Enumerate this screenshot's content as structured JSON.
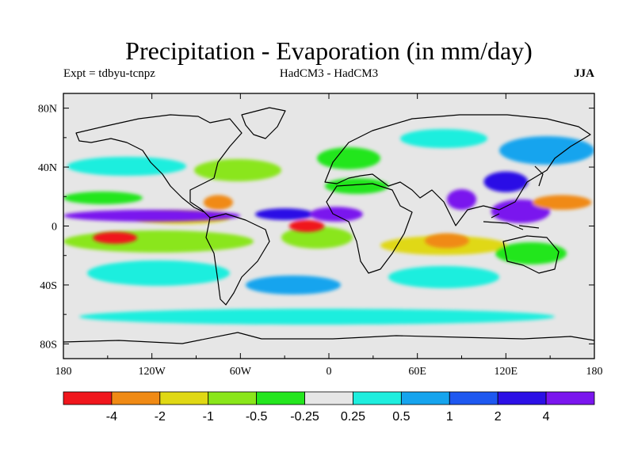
{
  "title": "Precipitation - Evaporation (in mm/day)",
  "experiment": "Expt = tdbyu-tcnpz",
  "models": "HadCM3 - HadCM3",
  "season": "JJA",
  "map": {
    "projection": "cylindrical-equidistant",
    "lon_range": [
      -180,
      180
    ],
    "lat_range": [
      -90,
      90
    ],
    "background_color": "#e6e6e6",
    "coastline_color": "#000000"
  },
  "chart_data": {
    "type": "heatmap",
    "title": "Precipitation - Evaporation (in mm/day)",
    "x_ticks": [
      {
        "value": -180,
        "label": "180"
      },
      {
        "value": -120,
        "label": "120W"
      },
      {
        "value": -60,
        "label": "60W"
      },
      {
        "value": 0,
        "label": "0"
      },
      {
        "value": 60,
        "label": "60E"
      },
      {
        "value": 120,
        "label": "120E"
      },
      {
        "value": 180,
        "label": "180"
      }
    ],
    "y_ticks": [
      {
        "value": 80,
        "label": "80N"
      },
      {
        "value": 40,
        "label": "40N"
      },
      {
        "value": 0,
        "label": "0"
      },
      {
        "value": -40,
        "label": "40S"
      },
      {
        "value": -80,
        "label": "80S"
      }
    ],
    "colorbar": {
      "colors": [
        "#f0161c",
        "#f08a14",
        "#e0d814",
        "#8ae61a",
        "#24e61e",
        "#e6e6e6",
        "#1eeede",
        "#16a4ee",
        "#1e58f0",
        "#2c10e6",
        "#7a16ee"
      ],
      "levels": [
        {
          "index": 1,
          "label": "-4"
        },
        {
          "index": 2,
          "label": "-2"
        },
        {
          "index": 3,
          "label": "-1"
        },
        {
          "index": 4,
          "label": "-0.5"
        },
        {
          "index": 5,
          "label": "-0.25"
        },
        {
          "index": 6,
          "label": "0.25"
        },
        {
          "index": 7,
          "label": "0.5"
        },
        {
          "index": 8,
          "label": "1"
        },
        {
          "index": 9,
          "label": "2"
        },
        {
          "index": 10,
          "label": "4"
        }
      ]
    },
    "regions": [
      {
        "name": "east-pacific-itcz",
        "class": 10,
        "lon": -120,
        "lat": 7,
        "rx": 60,
        "ry": 4
      },
      {
        "name": "atlantic-itcz",
        "class": 9,
        "lon": -30,
        "lat": 8,
        "rx": 20,
        "ry": 4
      },
      {
        "name": "west-africa-monsoon",
        "class": 10,
        "lon": 5,
        "lat": 8,
        "rx": 18,
        "ry": 5
      },
      {
        "name": "bay-of-bengal",
        "class": 10,
        "lon": 90,
        "lat": 18,
        "rx": 10,
        "ry": 7
      },
      {
        "name": "west-pacific-warm-pool",
        "class": 10,
        "lon": 130,
        "lat": 10,
        "rx": 20,
        "ry": 8
      },
      {
        "name": "east-asia-monsoon",
        "class": 9,
        "lon": 120,
        "lat": 30,
        "rx": 15,
        "ry": 7
      },
      {
        "name": "indian-ocean-dry",
        "class": 1,
        "lon": 80,
        "lat": -10,
        "rx": 15,
        "ry": 5
      },
      {
        "name": "tropical-atlantic-dry",
        "class": 0,
        "lon": -15,
        "lat": 0,
        "rx": 12,
        "ry": 4
      },
      {
        "name": "southeast-pacific-dry",
        "class": 0,
        "lon": -145,
        "lat": -8,
        "rx": 15,
        "ry": 4
      },
      {
        "name": "north-pacific-dry",
        "class": 1,
        "lon": 158,
        "lat": 16,
        "rx": 20,
        "ry": 5
      },
      {
        "name": "caribbean-dry",
        "class": 1,
        "lon": -75,
        "lat": 16,
        "rx": 10,
        "ry": 5
      }
    ]
  }
}
